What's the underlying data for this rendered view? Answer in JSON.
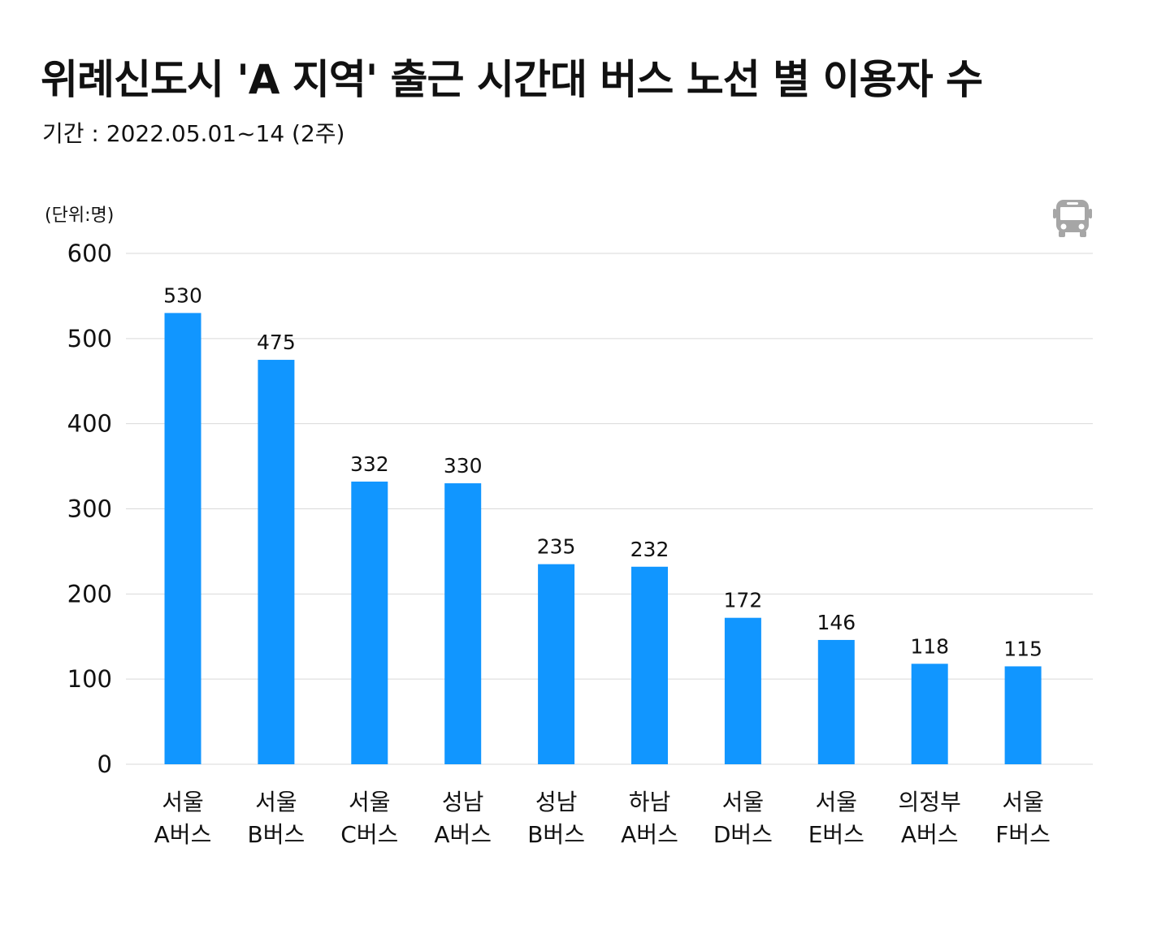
{
  "title": "위례신도시 'A 지역' 출근 시간대 버스 노선 별 이용자 수",
  "subtitle": "기간 : 2022.05.01~14 (2주)",
  "unit_label": "(단위:명)",
  "icon": "bus-icon",
  "colors": {
    "bar": "#1196FF",
    "grid": "#d9d9d9",
    "icon": "#a6a6a6"
  },
  "chart_data": {
    "type": "bar",
    "categories": [
      [
        "서울",
        "A버스"
      ],
      [
        "서울",
        "B버스"
      ],
      [
        "서울",
        "C버스"
      ],
      [
        "성남",
        "A버스"
      ],
      [
        "성남",
        "B버스"
      ],
      [
        "하남",
        "A버스"
      ],
      [
        "서울",
        "D버스"
      ],
      [
        "서울",
        "E버스"
      ],
      [
        "의정부",
        "A버스"
      ],
      [
        "서울",
        "F버스"
      ]
    ],
    "values": [
      530,
      475,
      332,
      330,
      235,
      232,
      172,
      146,
      118,
      115
    ],
    "ylim": [
      0,
      600
    ],
    "yticks": [
      0,
      100,
      200,
      300,
      400,
      500,
      600
    ],
    "grid": true,
    "data_labels": true
  }
}
